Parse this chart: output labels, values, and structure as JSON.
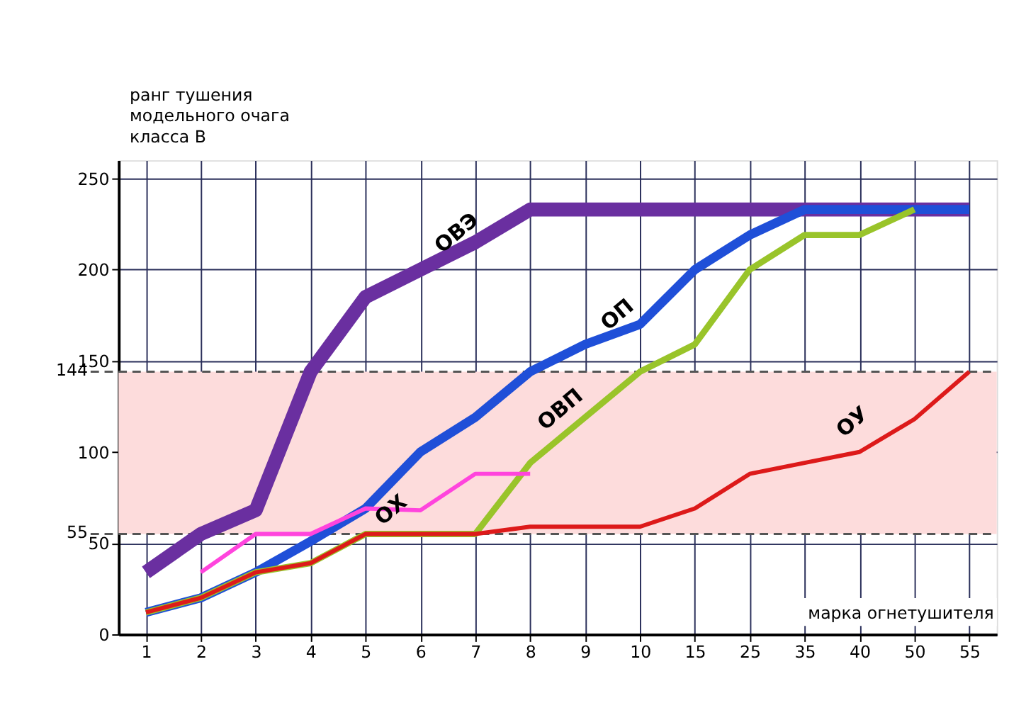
{
  "chart_data": {
    "type": "line",
    "ylabel": "ранг тушения модельного очага класса В",
    "xlabel": "марка огнетушителя",
    "categories": [
      "1",
      "2",
      "3",
      "4",
      "5",
      "6",
      "7",
      "8",
      "9",
      "10",
      "15",
      "25",
      "35",
      "40",
      "50",
      "55"
    ],
    "series": [
      {
        "name": "ОВЭ",
        "color": "#6a2fa0",
        "values": [
          34,
          55,
          68,
          144,
          185,
          200,
          215,
          233,
          233,
          233,
          233,
          233,
          233,
          233,
          233,
          233
        ]
      },
      {
        "name": "ОП",
        "color": "#1f4fd8",
        "values": [
          12,
          20,
          34,
          51,
          69,
          100,
          119,
          144,
          159,
          170,
          200,
          219,
          233,
          233,
          233,
          233
        ]
      },
      {
        "name": "ОВП",
        "color": "#99c42a",
        "values": [
          12,
          20,
          34,
          39,
          55,
          55,
          55,
          94,
          119,
          144,
          159,
          200,
          219,
          219,
          233,
          null
        ]
      },
      {
        "name": "ОХ",
        "color": "#ff44dd",
        "values": [
          null,
          34,
          55,
          55,
          69,
          68,
          88,
          88,
          null,
          null,
          null,
          null,
          null,
          null,
          null,
          null
        ]
      },
      {
        "name": "ОУ",
        "color": "#dd1a1a",
        "values": [
          12,
          20,
          34,
          39,
          55,
          55,
          55,
          59,
          59,
          59,
          69,
          88,
          94,
          100,
          118,
          144
        ]
      }
    ],
    "ylim": [
      0,
      260
    ],
    "yticks": [
      0,
      50,
      100,
      150,
      200,
      250
    ],
    "ref_lines": [
      {
        "axis": "y",
        "value": 144,
        "label": "144",
        "line_style": "dashed",
        "color": "#555555"
      },
      {
        "axis": "y",
        "value": 55,
        "label": "55",
        "line_style": "dashed",
        "color": "#555555"
      }
    ],
    "bands": [
      {
        "axis": "y",
        "from": 55,
        "to": 144,
        "color": "#fddcdc"
      }
    ],
    "grid": true,
    "legend": false,
    "marker": "none",
    "line_style": "solid"
  }
}
